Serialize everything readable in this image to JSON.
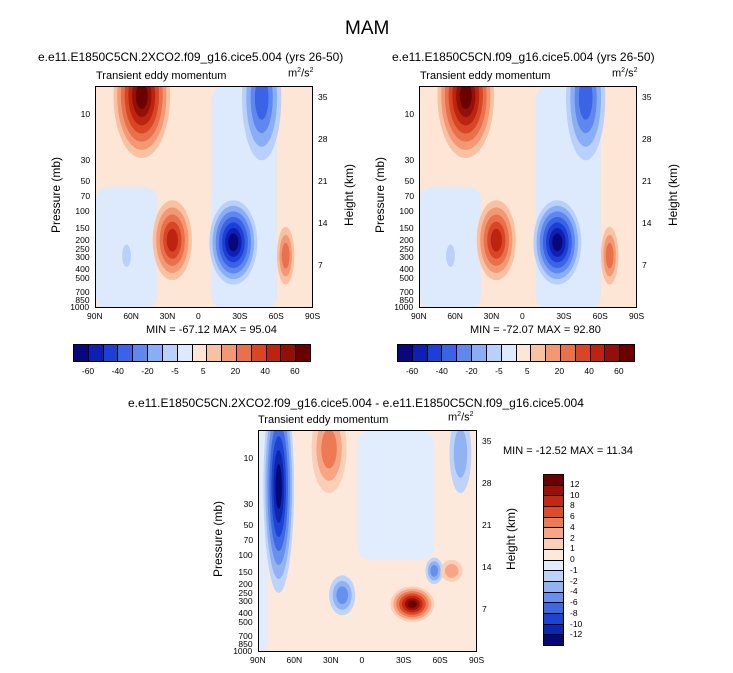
{
  "figure": {
    "title": "MAM"
  },
  "colors": {
    "main_scale": [
      "#08087a",
      "#0f1fb4",
      "#1d3fd6",
      "#3a63e6",
      "#5f88ef",
      "#8aaef5",
      "#b8d0fa",
      "#dde9fd",
      "#fde6d6",
      "#f8c2a2",
      "#f29974",
      "#e8704b",
      "#d84626",
      "#bc2410",
      "#941006",
      "#6b0000"
    ],
    "diff_scale": [
      "#6b0000",
      "#9a1006",
      "#c42812",
      "#de4a2a",
      "#ee7a55",
      "#f6a686",
      "#fbcfb5",
      "#fde9dc",
      "#e1ecfd",
      "#bdd3fa",
      "#91b3f4",
      "#6590ee",
      "#3d68e4",
      "#1d43d2",
      "#0d26ae",
      "#06087a"
    ]
  },
  "chart_data": [
    {
      "type": "contour",
      "subtitle": "e.e11.E1850C5CN.2XCO2.f09_g16.cice5.004 (yrs 26-50)",
      "left_label": "Transient eddy momentum",
      "units_label": "m",
      "units_sup": "2",
      "units_slash": "/s",
      "units_sup2": "2",
      "xlabel": "",
      "ylabel": "Pressure (mb)",
      "ylabel_right": "Height (km)",
      "x_ticks": [
        "90N",
        "60N",
        "30N",
        "0",
        "30S",
        "60S",
        "90S"
      ],
      "y_ticks": [
        "10",
        "30",
        "50",
        "70",
        "100",
        "150",
        "200",
        "250",
        "300",
        "400",
        "500",
        "700",
        "850",
        "1000"
      ],
      "y_ticks_right": [
        "35",
        "28",
        "21",
        "14",
        "7"
      ],
      "stats": "MIN = -67.12  MAX = 95.04",
      "min": -67.12,
      "max": 95.04,
      "colorbar_labels": [
        "-60",
        "-40",
        "-20",
        "-5",
        "5",
        "20",
        "40",
        "60"
      ]
    },
    {
      "type": "contour",
      "subtitle": "e.e11.E1850C5CN.f09_g16.cice5.004 (yrs 26-50)",
      "left_label": "Transient eddy momentum",
      "units_label": "m",
      "units_sup": "2",
      "units_slash": "/s",
      "units_sup2": "2",
      "xlabel": "",
      "ylabel": "Pressure (mb)",
      "ylabel_right": "Height (km)",
      "x_ticks": [
        "90N",
        "60N",
        "30N",
        "0",
        "30S",
        "60S",
        "90S"
      ],
      "y_ticks": [
        "10",
        "30",
        "50",
        "70",
        "100",
        "150",
        "200",
        "250",
        "300",
        "400",
        "500",
        "700",
        "850",
        "1000"
      ],
      "y_ticks_right": [
        "35",
        "28",
        "21",
        "14",
        "7"
      ],
      "stats": "MIN = -72.07  MAX = 92.80",
      "min": -72.07,
      "max": 92.8,
      "colorbar_labels": [
        "-60",
        "-40",
        "-20",
        "-5",
        "5",
        "20",
        "40",
        "60"
      ]
    },
    {
      "type": "contour",
      "subtitle": "e.e11.E1850C5CN.2XCO2.f09_g16.cice5.004 - e.e11.E1850C5CN.f09_g16.cice5.004",
      "left_label": "Transient eddy momentum",
      "units_label": "m",
      "units_sup": "2",
      "units_slash": "/s",
      "units_sup2": "2",
      "xlabel": "",
      "ylabel": "Pressure (mb)",
      "ylabel_right": "Height (km)",
      "x_ticks": [
        "90N",
        "60N",
        "30N",
        "0",
        "30S",
        "60S",
        "90S"
      ],
      "y_ticks": [
        "10",
        "30",
        "50",
        "70",
        "100",
        "150",
        "200",
        "250",
        "300",
        "400",
        "500",
        "700",
        "850",
        "1000"
      ],
      "y_ticks_right": [
        "35",
        "28",
        "21",
        "14",
        "7"
      ],
      "stats": "MIN = -12.52  MAX =  11.34",
      "min": -12.52,
      "max": 11.34,
      "colorbar_labels": [
        "12",
        "10",
        "8",
        "6",
        "4",
        "2",
        "1",
        "0",
        "-1",
        "-2",
        "-4",
        "-6",
        "-8",
        "-10",
        "-12"
      ]
    }
  ]
}
